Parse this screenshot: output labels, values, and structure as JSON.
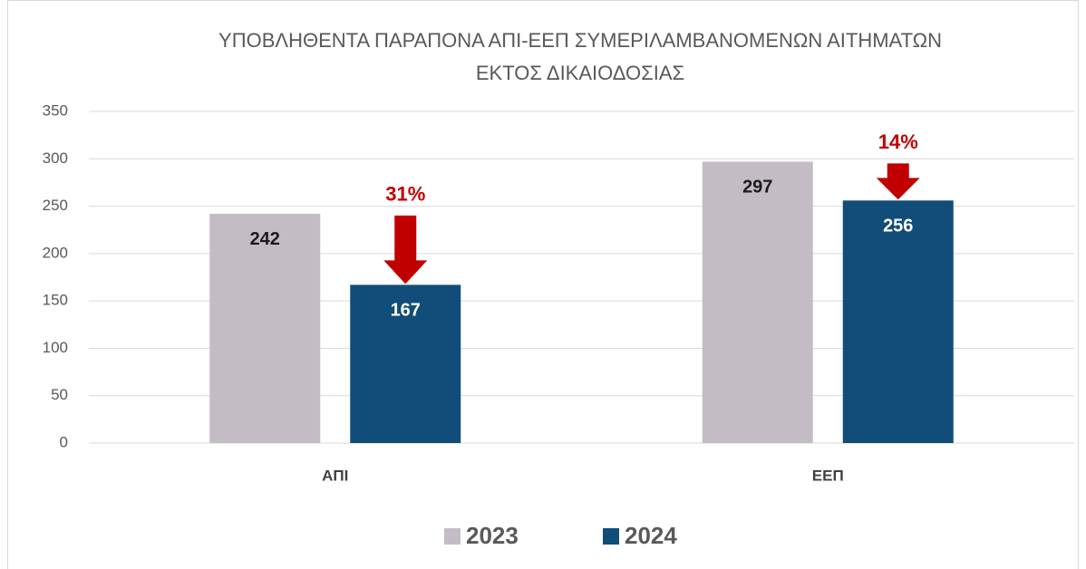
{
  "chart_data": {
    "type": "bar",
    "title": [
      "ΥΠΟΒΛΗΘΕΝΤΑ ΠΑΡΑΠΟΝΑ ΑΠΙ-ΕΕΠ ΣΥΜΕΡΙΛΑΜΒΑΝΟΜΕΝΩΝ ΑΙΤΗΜΑΤΩΝ",
      "ΕΚΤΟΣ ΔΙΚΑΙΟΔΟΣΙΑΣ"
    ],
    "categories": [
      "ΑΠΙ",
      "ΕΕΠ"
    ],
    "series": [
      {
        "name": "2023",
        "color": "#c3bcc5",
        "label_color": "#1a1a1a",
        "values": [
          242,
          297
        ]
      },
      {
        "name": "2024",
        "color": "#114d78",
        "label_color": "#ffffff",
        "values": [
          167,
          256
        ]
      }
    ],
    "annotations": [
      "31%",
      "14%"
    ],
    "ylim": [
      0,
      350
    ],
    "yticks": [
      0,
      50,
      100,
      150,
      200,
      250,
      300,
      350
    ],
    "grid": true
  }
}
